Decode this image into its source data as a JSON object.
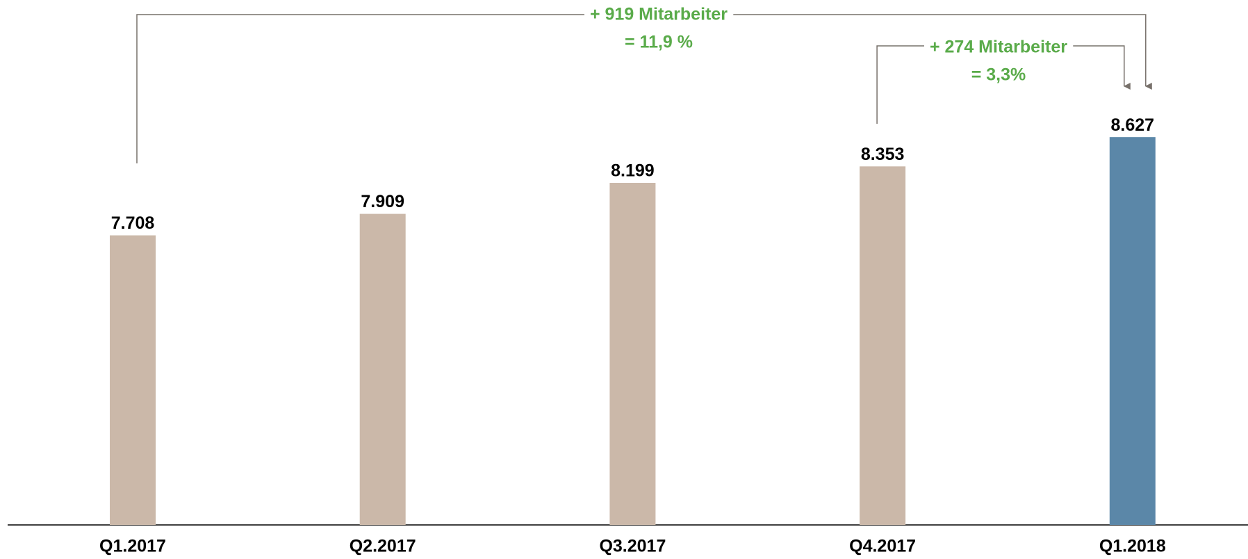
{
  "chart_data": {
    "type": "bar",
    "categories": [
      "Q1.2017",
      "Q2.2017",
      "Q3.2017",
      "Q4.2017",
      "Q1.2018"
    ],
    "values": [
      7708,
      7909,
      8199,
      8353,
      8627
    ],
    "value_labels": [
      "7.708",
      "7.909",
      "8.199",
      "8.353",
      "8.627"
    ],
    "colors": [
      "#cbb8a9",
      "#cbb8a9",
      "#cbb8a9",
      "#cbb8a9",
      "#5b87a8"
    ],
    "ylim": [
      5000,
      10000
    ],
    "annotations": [
      {
        "lines": [
          "+ 919 Mitarbeiter",
          "= 11,9 %"
        ],
        "color": "#5aab4a"
      },
      {
        "lines": [
          "+ 274 Mitarbeiter",
          "= 3,3%"
        ],
        "color": "#5aab4a"
      }
    ]
  }
}
